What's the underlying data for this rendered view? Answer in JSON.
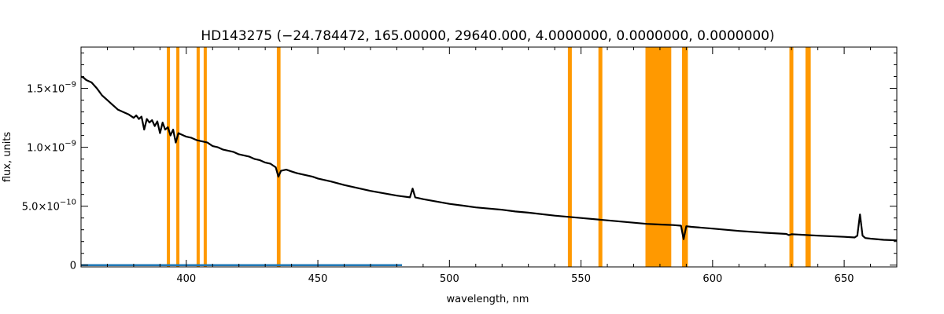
{
  "chart_data": {
    "type": "line",
    "title": "HD143275    (−24.784472, 165.00000, 29640.000, 4.0000000, 0.0000000, 0.0000000)",
    "xlabel": "wavelength, nm",
    "ylabel": "flux, units",
    "xlim": [
      360,
      670
    ],
    "ylim": [
      -1.5e-11,
      1.85e-09
    ],
    "x_major_ticks": [
      400,
      450,
      500,
      550,
      600,
      650
    ],
    "x_tick_labels": [
      "400",
      "450",
      "500",
      "550",
      "600",
      "650"
    ],
    "x_minor_step": 10,
    "y_ticks": [
      {
        "value": 0,
        "mantissa": "0",
        "exponent": ""
      },
      {
        "value": 5e-10,
        "mantissa": "5.0×10",
        "exponent": "−10"
      },
      {
        "value": 1e-09,
        "mantissa": "1.0×10",
        "exponent": "−9"
      },
      {
        "value": 1.5e-09,
        "mantissa": "1.5×10",
        "exponent": "−9"
      }
    ],
    "y_minor_step": 1e-10,
    "grid": false,
    "masked_bands_color": "#ff9900",
    "masked_bands": [
      [
        392.6,
        393.8
      ],
      [
        396.2,
        397.4
      ],
      [
        403.9,
        405.1
      ],
      [
        406.6,
        407.8
      ],
      [
        434.4,
        435.8
      ],
      [
        545.0,
        546.5
      ],
      [
        556.6,
        558.1
      ],
      [
        574.5,
        584.3
      ],
      [
        588.4,
        590.6
      ],
      [
        629.2,
        630.7
      ],
      [
        635.3,
        637.3
      ]
    ],
    "series": [
      {
        "color": "#000000",
        "x": [
          360,
          361,
          362,
          364,
          366,
          368,
          370,
          372,
          374,
          376,
          378,
          380,
          381,
          382,
          383,
          384,
          385,
          386,
          387,
          388,
          389,
          390,
          391,
          392,
          393,
          394,
          395,
          396,
          397,
          398,
          400,
          402,
          404,
          406,
          408,
          410,
          412,
          414,
          416,
          418,
          420,
          422,
          424,
          426,
          428,
          430,
          432,
          434,
          435,
          436,
          438,
          440,
          442,
          444,
          446,
          448,
          450,
          455,
          460,
          465,
          470,
          475,
          480,
          485,
          486,
          487,
          488,
          490,
          495,
          500,
          505,
          510,
          515,
          520,
          525,
          530,
          540,
          550,
          560,
          570,
          575,
          580,
          585,
          588,
          589,
          590,
          592,
          600,
          610,
          620,
          628,
          629,
          630,
          632,
          640,
          650,
          654,
          655,
          656,
          657,
          658,
          660,
          665,
          670
        ],
        "y": [
          1.6e-09,
          1.59e-09,
          1.57e-09,
          1.55e-09,
          1.5e-09,
          1.44e-09,
          1.4e-09,
          1.36e-09,
          1.32e-09,
          1.3e-09,
          1.28e-09,
          1.25e-09,
          1.27e-09,
          1.24e-09,
          1.26e-09,
          1.15e-09,
          1.24e-09,
          1.21e-09,
          1.23e-09,
          1.18e-09,
          1.22e-09,
          1.12e-09,
          1.21e-09,
          1.15e-09,
          1.17e-09,
          1.1e-09,
          1.15e-09,
          1.04e-09,
          1.12e-09,
          1.11e-09,
          1.09e-09,
          1.08e-09,
          1.06e-09,
          1.05e-09,
          1.04e-09,
          1.01e-09,
          1e-09,
          9.8e-10,
          9.7e-10,
          9.6e-10,
          9.4e-10,
          9.3e-10,
          9.2e-10,
          9e-10,
          8.9e-10,
          8.7e-10,
          8.6e-10,
          8.3e-10,
          7.5e-10,
          8e-10,
          8.1e-10,
          7.95e-10,
          7.8e-10,
          7.7e-10,
          7.6e-10,
          7.5e-10,
          7.35e-10,
          7.1e-10,
          6.8e-10,
          6.55e-10,
          6.3e-10,
          6.1e-10,
          5.9e-10,
          5.75e-10,
          6.5e-10,
          5.75e-10,
          5.7e-10,
          5.6e-10,
          5.4e-10,
          5.2e-10,
          5.05e-10,
          4.9e-10,
          4.8e-10,
          4.7e-10,
          4.55e-10,
          4.45e-10,
          4.2e-10,
          4e-10,
          3.8e-10,
          3.6e-10,
          3.5e-10,
          3.45e-10,
          3.4e-10,
          3.35e-10,
          2.2e-10,
          3.3e-10,
          3.25e-10,
          3.1e-10,
          2.9e-10,
          2.75e-10,
          2.65e-10,
          2.55e-10,
          2.62e-10,
          2.6e-10,
          2.5e-10,
          2.4e-10,
          2.35e-10,
          2.5e-10,
          4.3e-10,
          2.5e-10,
          2.3e-10,
          2.25e-10,
          2.15e-10,
          2.1e-10
        ]
      },
      {
        "color": "#1f77b4",
        "x": [
          360,
          482
        ],
        "y": [
          0,
          0
        ]
      }
    ]
  }
}
